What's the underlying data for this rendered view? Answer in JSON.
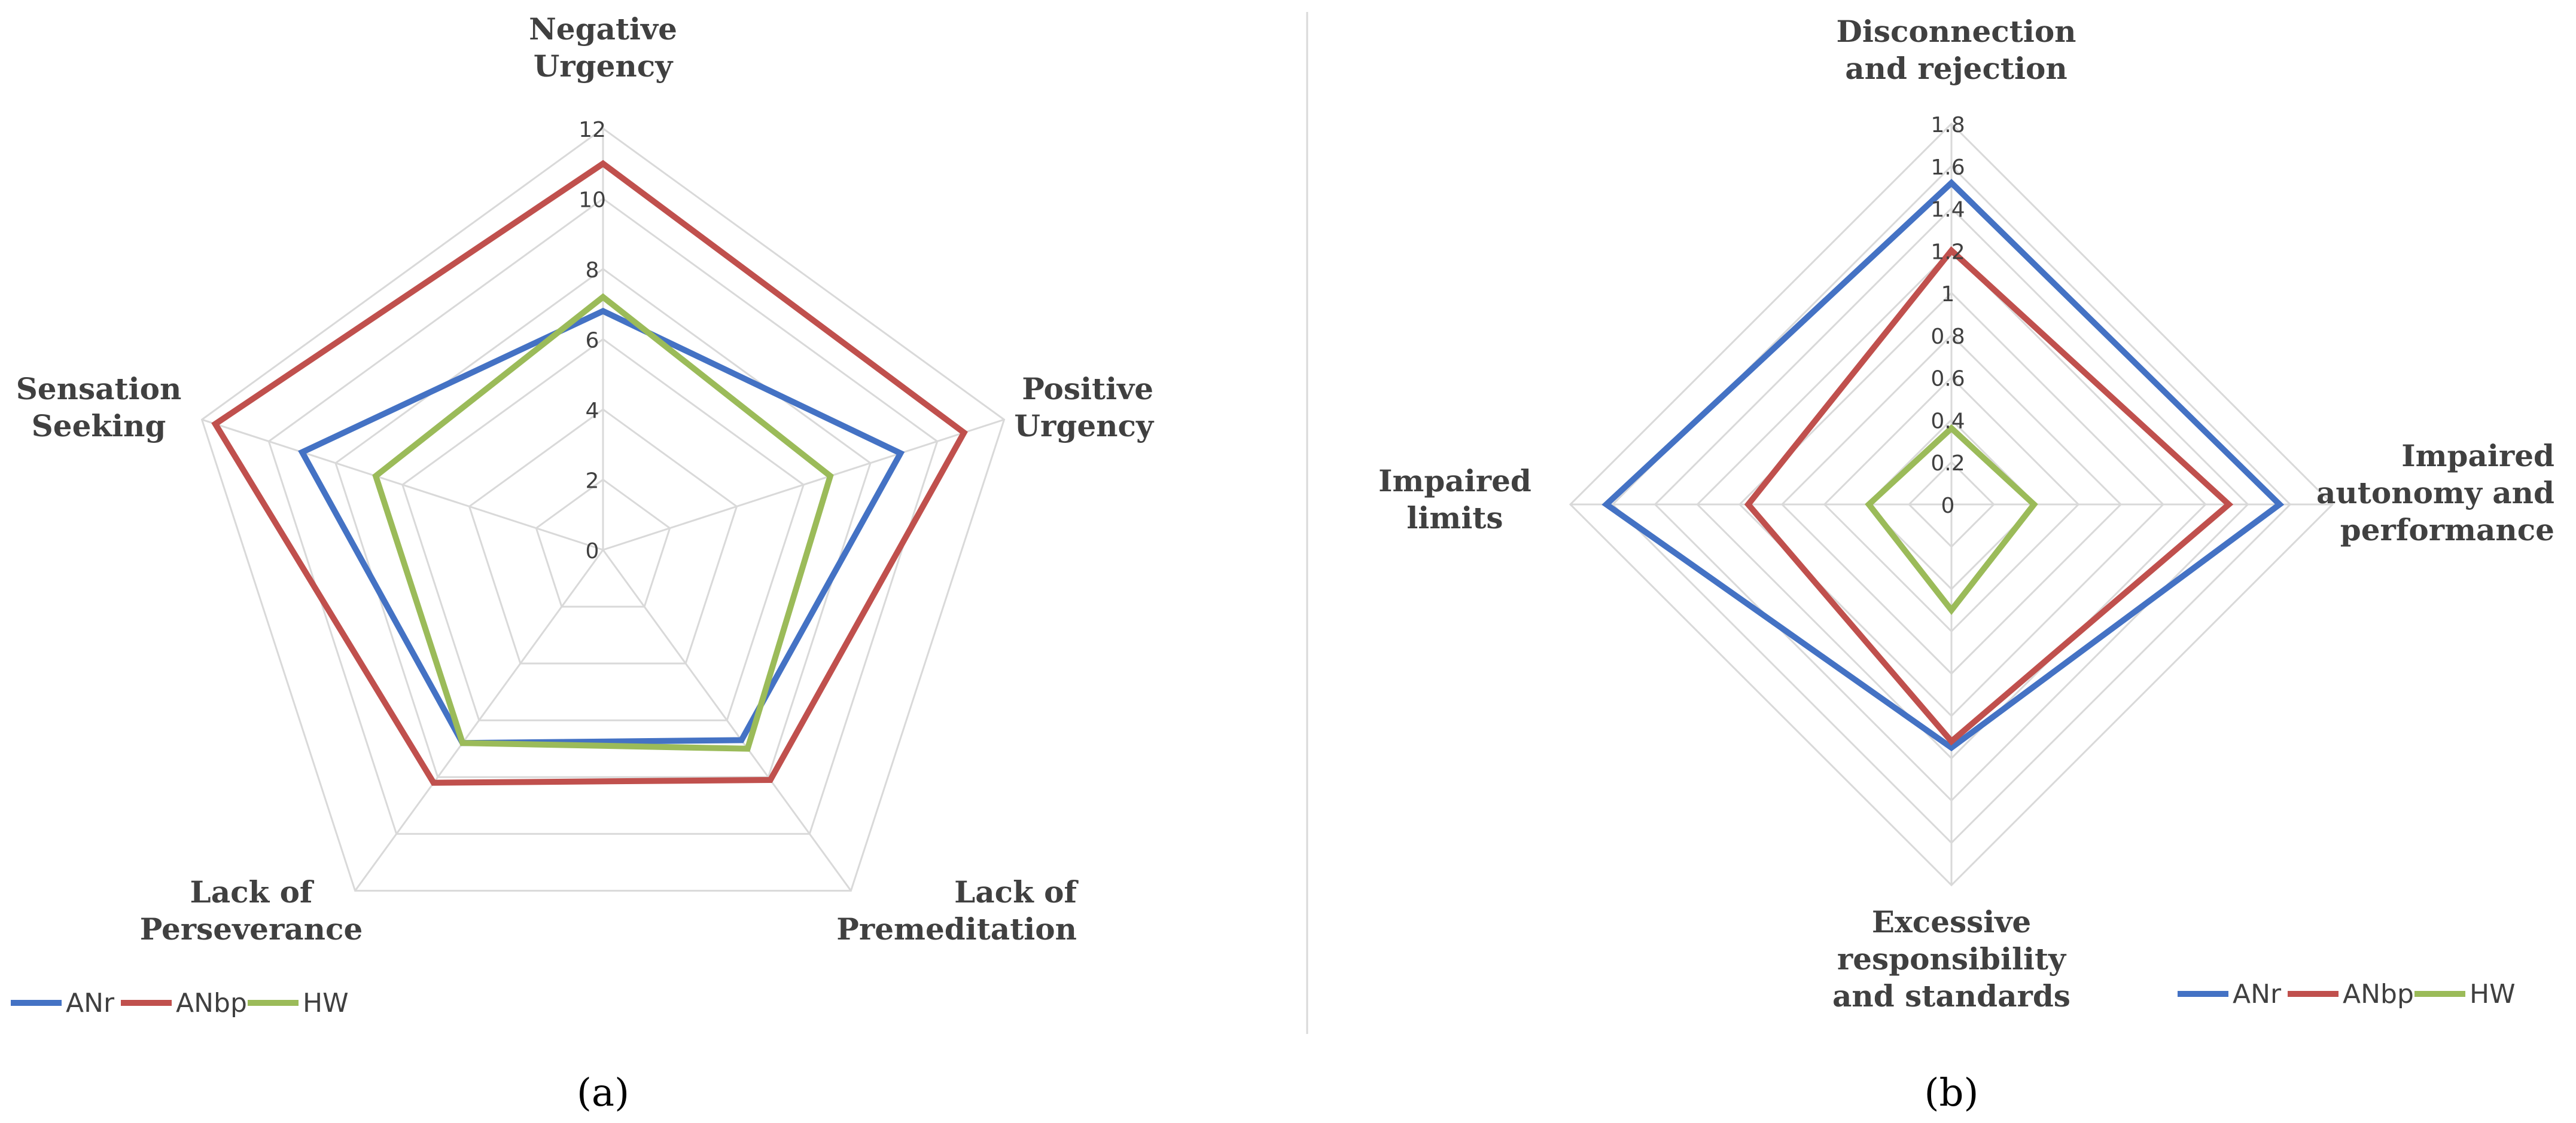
{
  "chart_data": [
    {
      "type": "radar",
      "caption": "(a)",
      "categories": [
        "Negative Urgency",
        "Positive Urgency",
        "Lack of Premeditation",
        "Lack of Perseverance",
        "Sensation Seeking"
      ],
      "ticks": [
        "0",
        "2",
        "4",
        "6",
        "8",
        "10",
        "12"
      ],
      "rlim": [
        0,
        12
      ],
      "grid": true,
      "legend_position": "bottom-left",
      "series": [
        {
          "name": "ANr",
          "color": "#4472C4",
          "values": [
            6.8,
            8.9,
            6.7,
            6.8,
            9.0
          ]
        },
        {
          "name": "ANbp",
          "color": "#C0504D",
          "values": [
            11.0,
            10.8,
            8.1,
            8.2,
            11.6
          ]
        },
        {
          "name": "HW",
          "color": "#9BBB59",
          "values": [
            7.2,
            6.8,
            7.0,
            6.8,
            6.8
          ]
        }
      ]
    },
    {
      "type": "radar",
      "caption": "(b)",
      "categories": [
        "Disconnection and rejection",
        "Impaired autonomy and performance",
        "Excessive responsibility and standards",
        "Impaired limits"
      ],
      "ticks": [
        "0",
        "0.2",
        "0.4",
        "0.6",
        "0.8",
        "1",
        "1.2",
        "1.4",
        "1.6",
        "1.8"
      ],
      "rlim": [
        0,
        1.8
      ],
      "grid": true,
      "legend_position": "bottom-right",
      "series": [
        {
          "name": "ANr",
          "color": "#4472C4",
          "values": [
            1.52,
            1.55,
            1.15,
            1.63
          ]
        },
        {
          "name": "ANbp",
          "color": "#C0504D",
          "values": [
            1.2,
            1.31,
            1.12,
            0.96
          ]
        },
        {
          "name": "HW",
          "color": "#9BBB59",
          "values": [
            0.36,
            0.39,
            0.5,
            0.39
          ]
        }
      ]
    }
  ]
}
